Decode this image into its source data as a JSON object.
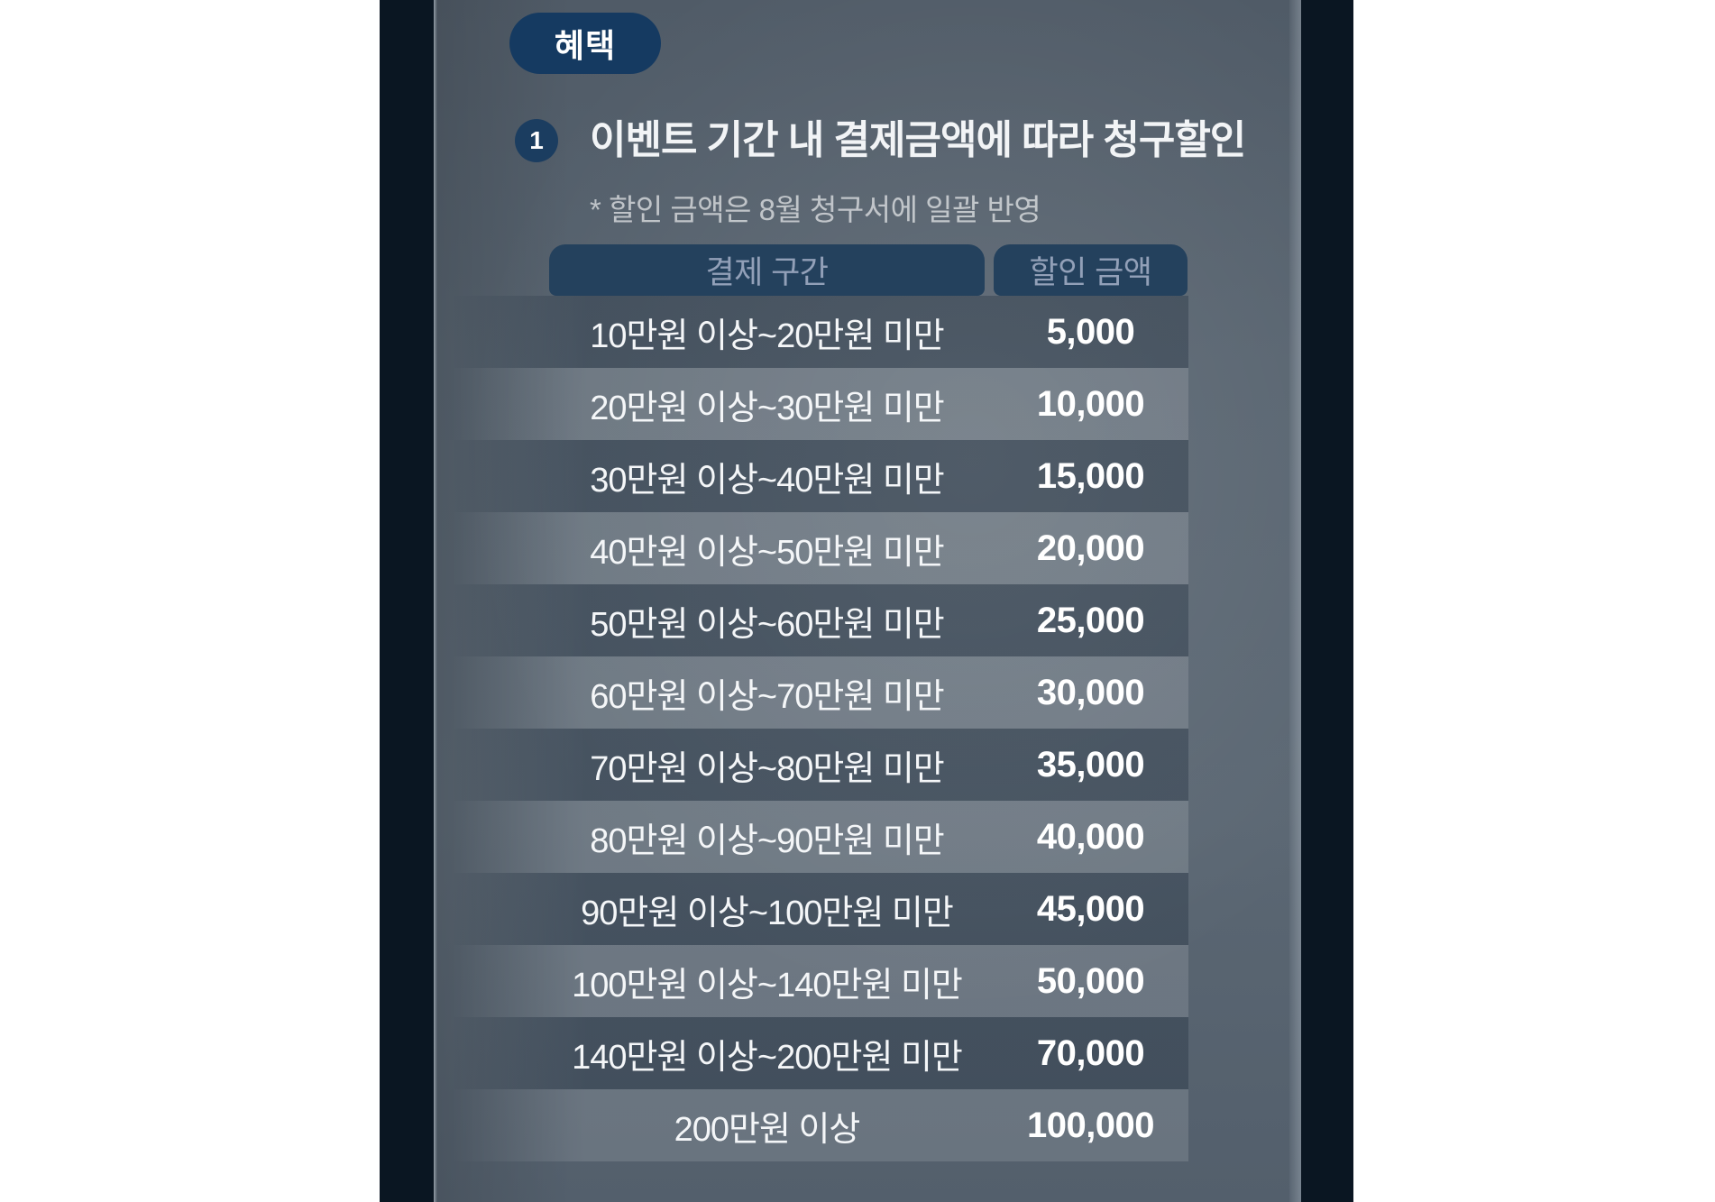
{
  "badge": {
    "label": "혜택"
  },
  "section": {
    "number": "1",
    "title": "이벤트 기간 내 결제금액에 따라 청구할인",
    "note": "* 할인 금액은 8월 청구서에 일괄 반영"
  },
  "table": {
    "headers": [
      {
        "label": "결제 구간"
      },
      {
        "label": "할인 금액"
      }
    ],
    "rows": [
      {
        "range": "10만원 이상~20만원 미만",
        "discount": "5,000"
      },
      {
        "range": "20만원 이상~30만원 미만",
        "discount": "10,000"
      },
      {
        "range": "30만원 이상~40만원 미만",
        "discount": "15,000"
      },
      {
        "range": "40만원 이상~50만원 미만",
        "discount": "20,000"
      },
      {
        "range": "50만원 이상~60만원 미만",
        "discount": "25,000"
      },
      {
        "range": "60만원 이상~70만원 미만",
        "discount": "30,000"
      },
      {
        "range": "70만원 이상~80만원 미만",
        "discount": "35,000"
      },
      {
        "range": "80만원 이상~90만원 미만",
        "discount": "40,000"
      },
      {
        "range": "90만원 이상~100만원 미만",
        "discount": "45,000"
      },
      {
        "range": "100만원 이상~140만원 미만",
        "discount": "50,000"
      },
      {
        "range": "140만원 이상~200만원 미만",
        "discount": "70,000"
      },
      {
        "range": "200만원 이상",
        "discount": "100,000"
      }
    ]
  },
  "colors": {
    "frame_navy": "#0a1622",
    "screen_gray": "#57636f",
    "badge_navy": "#153a61",
    "header_navy": "#24415d",
    "header_text": "#92a0b8",
    "row_text": "#f4f6f8",
    "page_background": "#ffffff"
  }
}
